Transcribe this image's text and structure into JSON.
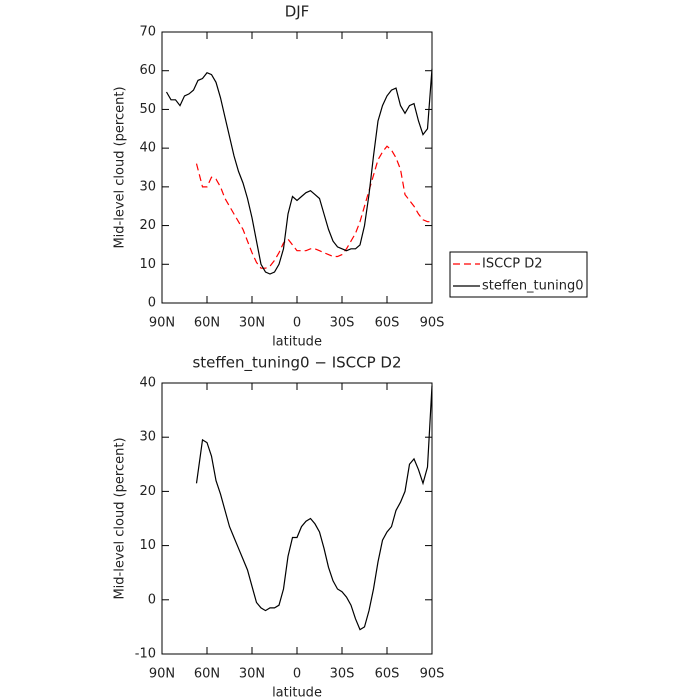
{
  "chart_data": [
    {
      "type": "line",
      "title": "DJF",
      "xlabel": "latitude",
      "ylabel": "Mid-level cloud (percent)",
      "xlim": [
        90,
        -90
      ],
      "xticks": [
        {
          "value": 90,
          "label": "90N"
        },
        {
          "value": 60,
          "label": "60N"
        },
        {
          "value": 30,
          "label": "30N"
        },
        0,
        {
          "value": -30,
          "label": "30S"
        },
        {
          "value": -60,
          "label": "60S"
        },
        {
          "value": -90,
          "label": "90S"
        }
      ],
      "ylim": [
        0,
        70
      ],
      "yticks": [
        0,
        10,
        20,
        30,
        40,
        50,
        60,
        70
      ],
      "legend": "right",
      "series": [
        {
          "name": "ISCCP D2",
          "color": "#ff0000",
          "dash": true,
          "x": [
            67,
            63,
            60,
            57,
            54,
            51,
            48,
            45,
            42,
            39,
            36,
            33,
            30,
            27,
            24,
            21,
            18,
            15,
            12,
            9,
            6,
            3,
            0,
            -3,
            -6,
            -9,
            -12,
            -15,
            -18,
            -21,
            -24,
            -27,
            -30,
            -33,
            -36,
            -39,
            -42,
            -45,
            -48,
            -51,
            -54,
            -57,
            -60,
            -63,
            -66,
            -69,
            -72,
            -75,
            -78,
            -81,
            -84,
            -87,
            -90
          ],
          "values": [
            36,
            30,
            30,
            32.5,
            32,
            30,
            27,
            25,
            23,
            21,
            19,
            16,
            13,
            10.5,
            9,
            9,
            9.5,
            11,
            13,
            15.5,
            16.5,
            15,
            13.5,
            13.5,
            13.5,
            14,
            14,
            13.5,
            13,
            12.5,
            12,
            12,
            12.5,
            14,
            16,
            18,
            21,
            25,
            29,
            33,
            37,
            39,
            40.5,
            39.5,
            37.5,
            34.5,
            28,
            26.5,
            25,
            23,
            21.5,
            21,
            21
          ]
        },
        {
          "name": "steffen_tuning0",
          "color": "#000000",
          "dash": false,
          "x": [
            87,
            84,
            81,
            78,
            75,
            72,
            69,
            66,
            63,
            60,
            57,
            54,
            51,
            48,
            45,
            42,
            39,
            36,
            33,
            30,
            27,
            24,
            21,
            18,
            15,
            12,
            9,
            6,
            3,
            0,
            -3,
            -6,
            -9,
            -12,
            -15,
            -18,
            -21,
            -24,
            -27,
            -30,
            -33,
            -36,
            -39,
            -42,
            -45,
            -48,
            -51,
            -54,
            -57,
            -60,
            -63,
            -66,
            -69,
            -72,
            -75,
            -78,
            -81,
            -84,
            -87,
            -90
          ],
          "values": [
            54.5,
            52.5,
            52.5,
            51,
            53.5,
            54,
            55,
            57.5,
            58,
            59.5,
            59,
            57,
            53,
            48,
            43,
            38,
            34,
            31,
            27,
            22,
            16,
            10,
            8,
            7.5,
            8,
            10,
            14,
            23,
            27.5,
            26.5,
            27.5,
            28.5,
            29,
            28,
            27,
            23,
            19,
            16,
            14.5,
            14,
            13.5,
            14,
            14,
            15,
            20,
            28,
            38,
            47,
            51,
            53.5,
            55,
            55.5,
            51,
            49,
            51,
            51.5,
            47,
            43.5,
            45,
            60.5
          ]
        }
      ]
    },
    {
      "type": "line",
      "title": "steffen_tuning0 − ISCCP D2",
      "xlabel": "latitude",
      "ylabel": "Mid-level cloud (percent)",
      "xlim": [
        90,
        -90
      ],
      "xticks": [
        {
          "value": 90,
          "label": "90N"
        },
        {
          "value": 60,
          "label": "60N"
        },
        {
          "value": 30,
          "label": "30N"
        },
        0,
        {
          "value": -30,
          "label": "30S"
        },
        {
          "value": -60,
          "label": "60S"
        },
        {
          "value": -90,
          "label": "90S"
        }
      ],
      "ylim": [
        -10,
        40
      ],
      "yticks": [
        -10,
        0,
        10,
        20,
        30,
        40
      ],
      "series": [
        {
          "color": "#000000",
          "dash": false,
          "x": [
            67,
            63,
            60,
            57,
            54,
            51,
            48,
            45,
            42,
            39,
            36,
            33,
            30,
            27,
            24,
            21,
            18,
            15,
            12,
            9,
            6,
            3,
            0,
            -3,
            -6,
            -9,
            -12,
            -15,
            -18,
            -21,
            -24,
            -27,
            -30,
            -33,
            -36,
            -39,
            -42,
            -45,
            -48,
            -51,
            -54,
            -57,
            -60,
            -63,
            -66,
            -69,
            -72,
            -75,
            -78,
            -81,
            -84,
            -87,
            -90
          ],
          "values": [
            21.5,
            29.5,
            29,
            26.5,
            22,
            19.5,
            16.5,
            13.5,
            11.5,
            9.5,
            7.5,
            5.5,
            2.5,
            -0.5,
            -1.5,
            -2,
            -1.5,
            -1.5,
            -1,
            2,
            8,
            11.5,
            11.5,
            13.5,
            14.5,
            15,
            14,
            12.5,
            9.5,
            6,
            3.5,
            2,
            1.5,
            0.5,
            -1,
            -3.5,
            -5.5,
            -5,
            -2,
            2,
            7,
            11,
            12.5,
            13.5,
            16.5,
            18,
            20,
            25,
            26,
            24,
            21.5,
            24.5,
            39.5
          ]
        }
      ]
    }
  ]
}
